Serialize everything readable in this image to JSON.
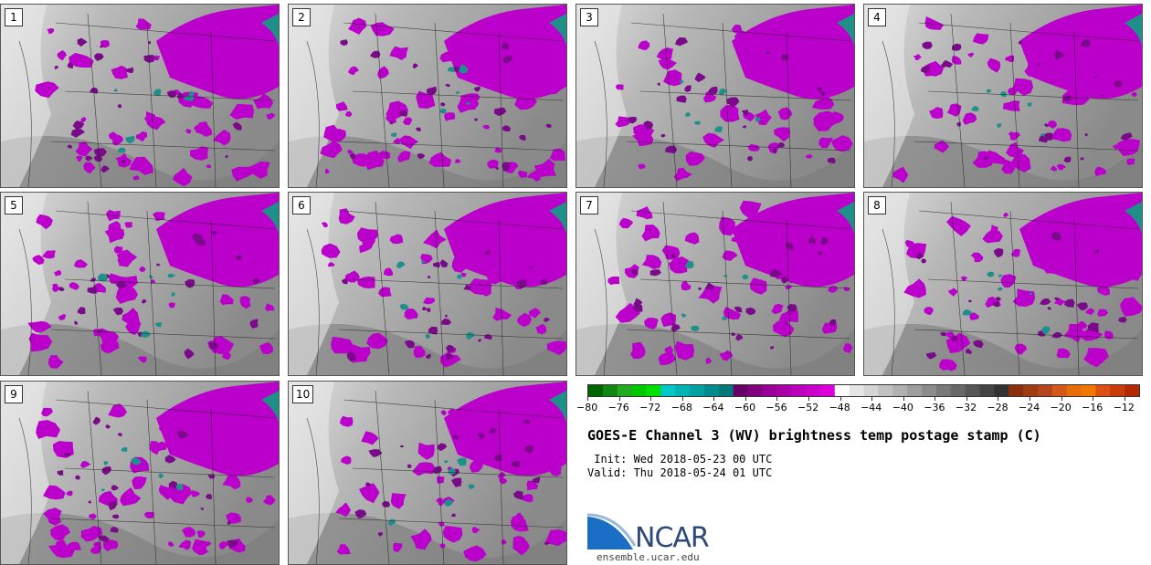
{
  "panels": [
    {
      "label": "1"
    },
    {
      "label": "2"
    },
    {
      "label": "3"
    },
    {
      "label": "4"
    },
    {
      "label": "5"
    },
    {
      "label": "6"
    },
    {
      "label": "7"
    },
    {
      "label": "8"
    },
    {
      "label": "9"
    },
    {
      "label": "10"
    }
  ],
  "colorbar": {
    "min": -80,
    "max": -10,
    "tick_labels": [
      "−80",
      "−76",
      "−72",
      "−68",
      "−64",
      "−60",
      "−56",
      "−52",
      "−48",
      "−44",
      "−40",
      "−36",
      "−32",
      "−28",
      "−24",
      "−20",
      "−16",
      "−12"
    ],
    "tick_values": [
      -80,
      -76,
      -72,
      -68,
      -64,
      -60,
      -56,
      -52,
      -48,
      -44,
      -40,
      -36,
      -32,
      -28,
      -24,
      -20,
      -16,
      -12
    ],
    "colors": [
      "#006400",
      "#118811",
      "#22aa22",
      "#00c800",
      "#00e000",
      "#00c8c8",
      "#00b4b4",
      "#00a0a0",
      "#008c8c",
      "#007878",
      "#660066",
      "#800080",
      "#990099",
      "#aa00aa",
      "#bb00bb",
      "#cc00cc",
      "#dd00dd",
      "#ffffff",
      "#e6e6e6",
      "#d4d4d4",
      "#c2c2c2",
      "#b0b0b0",
      "#9e9e9e",
      "#8c8c8c",
      "#7a7a7a",
      "#686868",
      "#565656",
      "#444444",
      "#323232",
      "#8b2e0e",
      "#a03c14",
      "#b4461e",
      "#d25a14",
      "#e66e0a",
      "#f07800",
      "#dc5014",
      "#c83c0a",
      "#b42800"
    ]
  },
  "title": "GOES-E Channel 3 (WV) brightness temp postage stamp (C)",
  "init": " Init: Wed 2018-05-23 00 UTC",
  "valid": "Valid: Thu 2018-05-24 01 UTC",
  "logo": {
    "text": "NCAR",
    "url": "ensemble.ucar.edu",
    "colors": {
      "swoosh": "#1a6fc4",
      "text": "#2b4a7a"
    }
  },
  "colors": {
    "purple": "#bb00cc",
    "dark_purple": "#7a0a8a",
    "teal": "#1f8f8a",
    "gray_light": "#d8d8d8",
    "gray_mid": "#9a9a9a",
    "gray_dark": "#6a6a6a"
  }
}
